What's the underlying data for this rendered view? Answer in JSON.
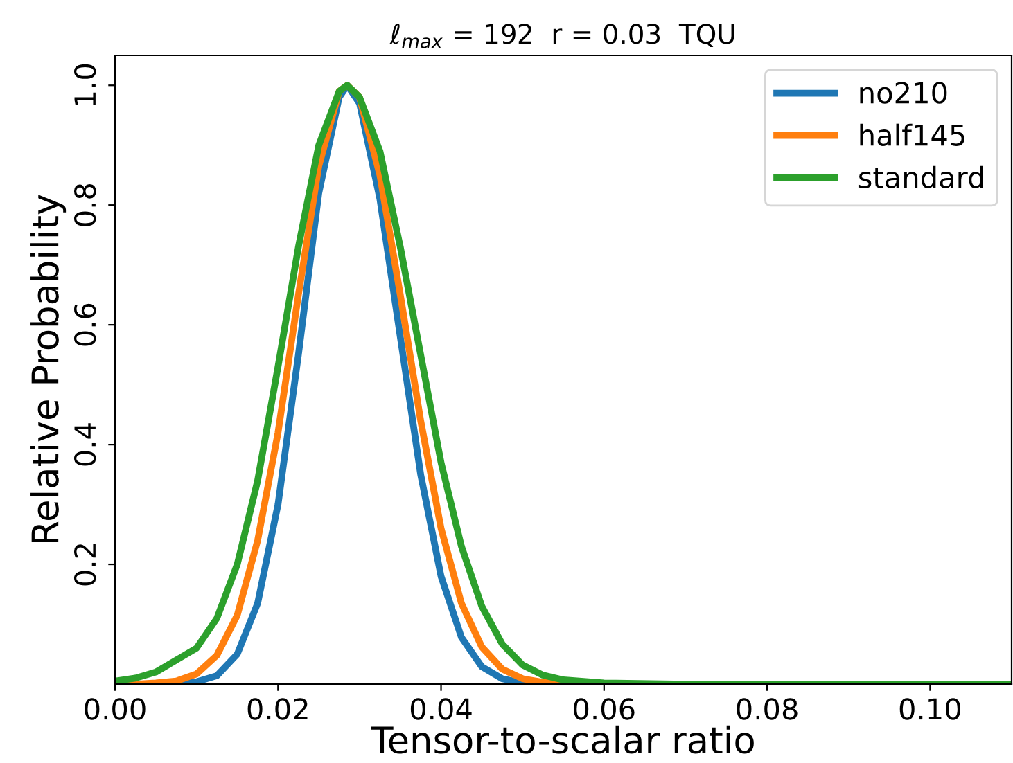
{
  "chart_data": {
    "type": "line",
    "title": "ℓ$_{max}$ = 192  r = 0.03  TQU",
    "xlabel": "Tensor-to-scalar ratio",
    "ylabel": "Relative Probability",
    "x": [
      0,
      0.0025,
      0.005,
      0.0075,
      0.01,
      0.0125,
      0.015,
      0.0175,
      0.02,
      0.0225,
      0.025,
      0.0275,
      0.0285,
      0.03,
      0.0325,
      0.035,
      0.0375,
      0.04,
      0.0425,
      0.045,
      0.0475,
      0.05,
      0.0525,
      0.055,
      0.06,
      0.07,
      0.08,
      0.09,
      0.1,
      0.11
    ],
    "series": [
      {
        "name": "no210",
        "color": "#1f77b4",
        "values": [
          null,
          null,
          0,
          0.001,
          0.004,
          0.014,
          0.05,
          0.135,
          0.3,
          0.55,
          0.82,
          0.98,
          1,
          0.97,
          0.81,
          0.58,
          0.35,
          0.18,
          0.078,
          0.029,
          0.009,
          0.002,
          0,
          null,
          null,
          null,
          null,
          null,
          null,
          null
        ]
      },
      {
        "name": "half145",
        "color": "#ff7f0e",
        "values": [
          0,
          0,
          0.002,
          0.005,
          0.017,
          0.048,
          0.115,
          0.24,
          0.42,
          0.65,
          0.865,
          0.99,
          1,
          0.98,
          0.85,
          0.65,
          0.44,
          0.26,
          0.135,
          0.062,
          0.025,
          0.009,
          0.003,
          0.001,
          0,
          null,
          null,
          null,
          null,
          null
        ]
      },
      {
        "name": "standard",
        "color": "#2ca02c",
        "values": [
          0.005,
          0.01,
          0.02,
          0.04,
          0.06,
          0.11,
          0.2,
          0.34,
          0.53,
          0.73,
          0.9,
          0.99,
          1,
          0.98,
          0.89,
          0.73,
          0.55,
          0.37,
          0.23,
          0.13,
          0.067,
          0.032,
          0.015,
          0.007,
          0.002,
          0,
          0,
          0,
          0,
          0
        ]
      }
    ],
    "xlim": [
      0,
      0.11
    ],
    "xticks": [
      {
        "value": 0,
        "label": "0.00"
      },
      {
        "value": 0.02,
        "label": "0.02"
      },
      {
        "value": 0.04,
        "label": "0.04"
      },
      {
        "value": 0.06,
        "label": "0.06"
      },
      {
        "value": 0.08,
        "label": "0.08"
      },
      {
        "value": 0.1,
        "label": "0.10"
      }
    ],
    "ylim": [
      0,
      1.05
    ],
    "yticks": [
      0.2,
      0.4,
      0.6,
      0.8,
      {
        "value": 1,
        "label": "1.0"
      }
    ],
    "legend": "top right",
    "grid": false,
    "line_style": "solid"
  }
}
